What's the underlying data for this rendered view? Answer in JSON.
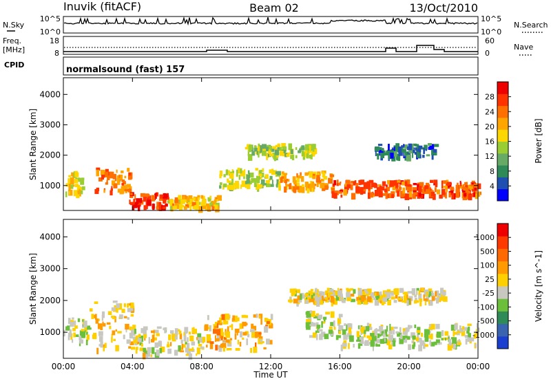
{
  "header": {
    "title_left": "Inuvik (fitACF)",
    "title_center": "Beam 02",
    "title_right": "13/Oct/2010"
  },
  "status_panels": {
    "nsky_label": "N.Sky",
    "nsearch_label": "N.Search",
    "nsky_ticks": [
      "10^5",
      "10^0"
    ],
    "nsearch_ticks": [
      "10^5",
      "10^0"
    ],
    "freq_label_top": "Freq.",
    "freq_label_unit": "[MHz]",
    "freq_ticks": [
      "18",
      "8"
    ],
    "nave_label": "Nave",
    "nave_ticks": [
      "60",
      "0"
    ],
    "cpid_label": "CPID",
    "cpid_value": "normalsound (fast) 157"
  },
  "power_panel": {
    "ylabel": "Slant Range [km]",
    "yticks": [
      "4000",
      "3000",
      "2000",
      "1000"
    ],
    "colorbar_label": "Power [dB]",
    "colorbar_ticks": [
      "28",
      "24",
      "20",
      "16",
      "12",
      "8",
      "4"
    ],
    "colors": [
      "#0000ff",
      "#1f4fb0",
      "#2e8b57",
      "#66aa66",
      "#9acd32",
      "#ffd700",
      "#ffa500",
      "#ff7000",
      "#ff3300",
      "#ee0000"
    ]
  },
  "velocity_panel": {
    "ylabel": "Slant Range [km]",
    "yticks": [
      "4000",
      "3000",
      "2000",
      "1000"
    ],
    "colorbar_label": "Velocity [m s^-1]",
    "colorbar_ticks": [
      "1000",
      "500",
      "100",
      "25",
      "-25",
      "-100",
      "-500",
      "-1000"
    ],
    "colors": [
      "#1a3fd0",
      "#3a63b0",
      "#2e8b57",
      "#6bbf3a",
      "#c8c8c0",
      "#ffd000",
      "#ff9a00",
      "#ff6a00",
      "#ff3a00",
      "#ee0000"
    ]
  },
  "xaxis": {
    "label": "Time UT",
    "ticks": [
      "00:00",
      "04:00",
      "08:00",
      "12:00",
      "16:00",
      "20:00",
      "00:00"
    ]
  },
  "chart_data": {
    "type": "heatmap",
    "title": "Inuvik (fitACF) Beam 02 13/Oct/2010",
    "xlabel": "Time UT",
    "ylabel": "Slant Range [km]",
    "x_range_hours": [
      0,
      24
    ],
    "y_range_km": [
      180,
      4550
    ],
    "panels": [
      {
        "name": "Power [dB]",
        "clim": [
          0,
          30
        ],
        "regions": [
          {
            "t0": 0.0,
            "t1": 1.2,
            "r0": 700,
            "r1": 1500,
            "value": 16
          },
          {
            "t0": 1.8,
            "t1": 3.8,
            "r0": 800,
            "r1": 1600,
            "value": 22
          },
          {
            "t0": 3.8,
            "t1": 6.0,
            "r0": 300,
            "r1": 800,
            "value": 26
          },
          {
            "t0": 6.0,
            "t1": 9.0,
            "r0": 300,
            "r1": 700,
            "value": 18
          },
          {
            "t0": 9.0,
            "t1": 12.5,
            "r0": 1000,
            "r1": 1600,
            "value": 14
          },
          {
            "t0": 12.5,
            "t1": 15.5,
            "r0": 900,
            "r1": 1500,
            "value": 20
          },
          {
            "t0": 15.5,
            "t1": 24.0,
            "r0": 700,
            "r1": 1200,
            "value": 24
          },
          {
            "t0": 10.5,
            "t1": 14.5,
            "r0": 2000,
            "r1": 2400,
            "value": 14
          },
          {
            "t0": 18.0,
            "t1": 21.5,
            "r0": 2000,
            "r1": 2400,
            "value": 6
          }
        ]
      },
      {
        "name": "Velocity [m s^-1]",
        "clim": [
          -1000,
          1000
        ],
        "regions": [
          {
            "t0": 0.0,
            "t1": 1.5,
            "r0": 700,
            "r1": 1500,
            "value": -120
          },
          {
            "t0": 1.5,
            "t1": 4.0,
            "r0": 500,
            "r1": 2000,
            "value": 150
          },
          {
            "t0": 4.0,
            "t1": 8.0,
            "r0": 300,
            "r1": 1200,
            "value": 0
          },
          {
            "t0": 8.0,
            "t1": 12.0,
            "r0": 500,
            "r1": 1600,
            "value": 200
          },
          {
            "t0": 14.0,
            "t1": 16.0,
            "r0": 900,
            "r1": 1700,
            "value": -150
          },
          {
            "t0": 16.0,
            "t1": 24.0,
            "r0": 600,
            "r1": 1300,
            "value": -120
          },
          {
            "t0": 13.0,
            "t1": 22.0,
            "r0": 2000,
            "r1": 2400,
            "value": 0
          }
        ]
      }
    ]
  }
}
